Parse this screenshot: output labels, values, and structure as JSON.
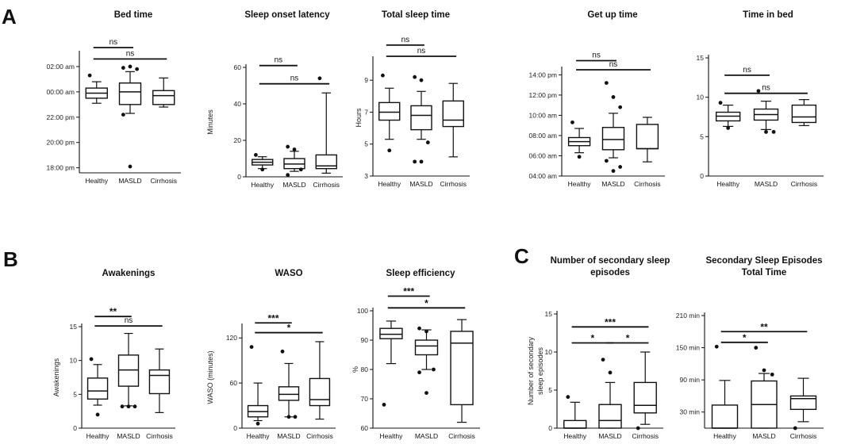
{
  "figure": {
    "panel_labels": [
      "A",
      "B",
      "C"
    ]
  },
  "chart_data": [
    {
      "id": "bed",
      "type": "box",
      "title": "Bed time",
      "ylabel": "",
      "ylim": [
        17.6,
        27.0
      ],
      "ticks": [
        {
          "v": 18,
          "label": "18:00 pm"
        },
        {
          "v": 20,
          "label": "20:00 pm"
        },
        {
          "v": 22,
          "label": "22:00 pm"
        },
        {
          "v": 24,
          "label": "00:00 am"
        },
        {
          "v": 26,
          "label": "02:00 am"
        }
      ],
      "categories": [
        "Healthy",
        "MASLD",
        "Cirrhosis"
      ],
      "boxes": [
        {
          "wlo": 23.1,
          "q1": 23.5,
          "med": 23.9,
          "q3": 24.3,
          "whi": 24.8,
          "out": [
            25.3
          ]
        },
        {
          "wlo": 22.3,
          "q1": 23.0,
          "med": 24.0,
          "q3": 24.7,
          "whi": 25.6,
          "out": [
            25.9,
            26.0,
            25.8,
            22.2,
            18.1
          ]
        },
        {
          "wlo": 22.8,
          "q1": 23.0,
          "med": 23.7,
          "q3": 24.1,
          "whi": 25.1,
          "out": []
        }
      ],
      "sig": [
        {
          "from": 0,
          "to": 1,
          "label": "ns",
          "y": 27.5
        },
        {
          "from": 0,
          "to": 2,
          "label": "ns",
          "y": 26.6
        }
      ]
    },
    {
      "id": "sol",
      "type": "box",
      "title": "Sleep onset latency",
      "ylabel": "Minutes",
      "ylim": [
        0,
        60
      ],
      "ticks": [
        {
          "v": 0,
          "label": "0"
        },
        {
          "v": 20,
          "label": "20"
        },
        {
          "v": 40,
          "label": "40"
        },
        {
          "v": 60,
          "label": "60"
        }
      ],
      "categories": [
        "Healthy",
        "MASLD",
        "Cirrhosis"
      ],
      "boxes": [
        {
          "wlo": 4.5,
          "q1": 6.5,
          "med": 8,
          "q3": 9.5,
          "whi": 11,
          "out": [
            12,
            4
          ]
        },
        {
          "wlo": 3,
          "q1": 4.5,
          "med": 7,
          "q3": 10,
          "whi": 14,
          "out": [
            16.5,
            15,
            4,
            1
          ]
        },
        {
          "wlo": 2,
          "q1": 4.5,
          "med": 6,
          "q3": 12,
          "whi": 46,
          "out": [
            54
          ]
        }
      ],
      "sig": [
        {
          "from": 0,
          "to": 1,
          "label": "ns",
          "y": 61
        },
        {
          "from": 0,
          "to": 2,
          "label": "ns",
          "y": 51
        }
      ]
    },
    {
      "id": "tst",
      "type": "box",
      "title": "Total sleep time",
      "ylabel": "Hours",
      "ylim": [
        3,
        10.3
      ],
      "ticks": [
        {
          "v": 3,
          "label": "3"
        },
        {
          "v": 5,
          "label": "5"
        },
        {
          "v": 7,
          "label": "7"
        },
        {
          "v": 9,
          "label": "9"
        }
      ],
      "categories": [
        "Healthy",
        "MASLD",
        "Cirrhosis"
      ],
      "boxes": [
        {
          "wlo": 5.3,
          "q1": 6.5,
          "med": 7,
          "q3": 7.6,
          "whi": 8.5,
          "out": [
            9.3,
            4.6
          ]
        },
        {
          "wlo": 5.3,
          "q1": 5.9,
          "med": 6.8,
          "q3": 7.4,
          "whi": 8.3,
          "out": [
            9.2,
            9.0,
            5.1,
            3.9,
            3.9
          ]
        },
        {
          "wlo": 4.2,
          "q1": 6.1,
          "med": 6.5,
          "q3": 7.7,
          "whi": 8.8,
          "out": []
        }
      ],
      "sig": [
        {
          "from": 0,
          "to": 1,
          "label": "ns",
          "y": 11.2
        },
        {
          "from": 0,
          "to": 2,
          "label": "ns",
          "y": 10.5
        }
      ]
    },
    {
      "id": "get",
      "type": "box",
      "title": "Get up time",
      "ylabel": "",
      "ylim": [
        4,
        14.5
      ],
      "ticks": [
        {
          "v": 4,
          "label": "04:00 am"
        },
        {
          "v": 6,
          "label": "06:00 am"
        },
        {
          "v": 8,
          "label": "08:00 am"
        },
        {
          "v": 10,
          "label": "10:00 am"
        },
        {
          "v": 12,
          "label": "12:00 pm"
        },
        {
          "v": 14,
          "label": "14:00 pm"
        }
      ],
      "categories": [
        "Healthy",
        "MASLD",
        "Cirrhosis"
      ],
      "boxes": [
        {
          "wlo": 6.3,
          "q1": 7,
          "med": 7.4,
          "q3": 7.8,
          "whi": 8.7,
          "out": [
            9.3,
            5.9
          ]
        },
        {
          "wlo": 5.8,
          "q1": 6.6,
          "med": 7.6,
          "q3": 8.8,
          "whi": 10.2,
          "out": [
            13.2,
            11.8,
            10.8,
            5.5,
            4.5,
            4.9
          ]
        },
        {
          "wlo": 5.4,
          "q1": 6.7,
          "med": 6.7,
          "q3": 9.1,
          "whi": 9.8,
          "out": []
        }
      ],
      "sig": [
        {
          "from": 0,
          "to": 1,
          "label": "ns",
          "y": 15.4
        },
        {
          "from": 0,
          "to": 2,
          "label": "ns",
          "y": 14.5
        }
      ]
    },
    {
      "id": "tib",
      "type": "box",
      "title": "Time in bed",
      "ylabel": "",
      "ylim": [
        0,
        15
      ],
      "ticks": [
        {
          "v": 0,
          "label": "0"
        },
        {
          "v": 5,
          "label": "5"
        },
        {
          "v": 10,
          "label": "10"
        },
        {
          "v": 15,
          "label": "15"
        }
      ],
      "categories": [
        "Healthy",
        "MASLD",
        "Cirrhosis"
      ],
      "boxes": [
        {
          "wlo": 6.3,
          "q1": 7,
          "med": 7.6,
          "q3": 8.1,
          "whi": 9,
          "out": [
            9.3,
            6.1
          ]
        },
        {
          "wlo": 5.9,
          "q1": 7.1,
          "med": 7.8,
          "q3": 8.5,
          "whi": 9.5,
          "out": [
            10.8,
            5.6,
            5.6
          ]
        },
        {
          "wlo": 6.4,
          "q1": 6.8,
          "med": 7.5,
          "q3": 9,
          "whi": 9.7,
          "out": []
        }
      ],
      "sig": [
        {
          "from": 0,
          "to": 1,
          "label": "ns",
          "y": 12.8
        },
        {
          "from": 0,
          "to": 2,
          "label": "ns",
          "y": 10.5
        }
      ]
    },
    {
      "id": "awk",
      "type": "box",
      "title": "Awakenings",
      "ylabel": "Awakenings",
      "ylim": [
        0,
        15
      ],
      "ticks": [
        {
          "v": 0,
          "label": "0"
        },
        {
          "v": 5,
          "label": "5"
        },
        {
          "v": 10,
          "label": "10"
        },
        {
          "v": 15,
          "label": "15"
        }
      ],
      "categories": [
        "Healthy",
        "MASLD",
        "Cirrhosis"
      ],
      "boxes": [
        {
          "wlo": 3.4,
          "q1": 4.3,
          "med": 5.5,
          "q3": 7.4,
          "whi": 9.4,
          "out": [
            10.2,
            2
          ]
        },
        {
          "wlo": 3.3,
          "q1": 6.2,
          "med": 8.6,
          "q3": 10.8,
          "whi": 14,
          "out": [
            3.2,
            3.2,
            3.2
          ]
        },
        {
          "wlo": 2.3,
          "q1": 5.1,
          "med": 7.8,
          "q3": 8.6,
          "whi": 11.7,
          "out": []
        }
      ],
      "sig": [
        {
          "from": 0,
          "to": 1,
          "label": "**",
          "y": 16.5
        },
        {
          "from": 0,
          "to": 2,
          "label": "ns",
          "y": 15.1
        }
      ]
    },
    {
      "id": "waso",
      "type": "box",
      "title": "WASO",
      "ylabel": "WASO (minutes)",
      "ylim": [
        0,
        135
      ],
      "ticks": [
        {
          "v": 0,
          "label": "0"
        },
        {
          "v": 60,
          "label": "60"
        },
        {
          "v": 120,
          "label": "120"
        }
      ],
      "categories": [
        "Healthy",
        "MASLD",
        "Cirrhosis"
      ],
      "boxes": [
        {
          "wlo": 10,
          "q1": 15,
          "med": 22,
          "q3": 30,
          "whi": 60,
          "out": [
            108,
            6
          ]
        },
        {
          "wlo": 15,
          "q1": 37,
          "med": 45,
          "q3": 55,
          "whi": 86,
          "out": [
            102,
            15,
            15
          ]
        },
        {
          "wlo": 12,
          "q1": 30,
          "med": 38,
          "q3": 66,
          "whi": 115,
          "out": []
        }
      ],
      "sig": [
        {
          "from": 0,
          "to": 1,
          "label": "***",
          "y": 140
        },
        {
          "from": 0,
          "to": 2,
          "label": "*",
          "y": 127
        }
      ]
    },
    {
      "id": "eff",
      "type": "box",
      "title": "Sleep efficiency",
      "ylabel": "%",
      "ylim": [
        60,
        100
      ],
      "ticks": [
        {
          "v": 60,
          "label": "60"
        },
        {
          "v": 70,
          "label": "70"
        },
        {
          "v": 80,
          "label": "80"
        },
        {
          "v": 90,
          "label": "90"
        },
        {
          "v": 100,
          "label": "100"
        }
      ],
      "categories": [
        "Healthy",
        "MASLD",
        "Cirrhosis"
      ],
      "boxes": [
        {
          "wlo": 82,
          "q1": 90.5,
          "med": 92,
          "q3": 94,
          "whi": 96.5,
          "out": [
            68
          ]
        },
        {
          "wlo": 80,
          "q1": 85,
          "med": 88,
          "q3": 90,
          "whi": 93.5,
          "out": [
            94,
            93,
            80,
            79,
            72
          ]
        },
        {
          "wlo": 62,
          "q1": 68,
          "med": 89,
          "q3": 93,
          "whi": 97,
          "out": []
        }
      ],
      "sig": [
        {
          "from": 0,
          "to": 1,
          "label": "***",
          "y": 105
        },
        {
          "from": 0,
          "to": 2,
          "label": "*",
          "y": 101
        }
      ]
    },
    {
      "id": "sec",
      "type": "box",
      "title": "Number of secondary sleep episodes",
      "title_lines": [
        "Number of secondary sleep",
        "episodes"
      ],
      "ylabel": "Number of secondary sleep episodes",
      "ylabel_lines": [
        "Number of secondary",
        "sleep episodes"
      ],
      "ylim": [
        0,
        15
      ],
      "ticks": [
        {
          "v": 0,
          "label": "0"
        },
        {
          "v": 5,
          "label": "5"
        },
        {
          "v": 10,
          "label": "10"
        },
        {
          "v": 15,
          "label": "15"
        }
      ],
      "categories": [
        "Healthy",
        "MASLD",
        "Cirrhosis"
      ],
      "boxes": [
        {
          "wlo": 0,
          "q1": 0,
          "med": 0,
          "q3": 1,
          "whi": 3.4,
          "out": [
            4.1
          ]
        },
        {
          "wlo": 0,
          "q1": 0,
          "med": 1,
          "q3": 3.1,
          "whi": 6,
          "out": [
            9,
            7.3
          ]
        },
        {
          "wlo": 0.5,
          "q1": 2,
          "med": 3,
          "q3": 6,
          "whi": 10,
          "out": [
            0
          ]
        }
      ],
      "sig": [
        {
          "from": 0,
          "to": 1,
          "label": "*",
          "y": 11.2
        },
        {
          "from": 0,
          "to": 2,
          "label": "***",
          "y": 13.3
        },
        {
          "from": 1,
          "to": 2,
          "label": "*",
          "y": 11.2
        }
      ]
    },
    {
      "id": "sectime",
      "type": "box",
      "title": "Secondary Sleep Episodes Total Time",
      "title_lines": [
        "Secondary Sleep Episodes",
        "Total Time"
      ],
      "ylabel": "",
      "ylim": [
        0,
        210
      ],
      "ticks": [
        {
          "v": 30,
          "label": "30 min"
        },
        {
          "v": 90,
          "label": "90 min"
        },
        {
          "v": 150,
          "label": "150 min"
        },
        {
          "v": 210,
          "label": "210 min"
        }
      ],
      "categories": [
        "Healthy",
        "MASLD",
        "Cirrhosis"
      ],
      "boxes": [
        {
          "wlo": 0,
          "q1": 0,
          "med": 0,
          "q3": 43,
          "whi": 89,
          "out": [
            152
          ]
        },
        {
          "wlo": 0,
          "q1": 0,
          "med": 44,
          "q3": 88,
          "whi": 102,
          "out": [
            150,
            108,
            100
          ]
        },
        {
          "wlo": 12,
          "q1": 35,
          "med": 55,
          "q3": 60,
          "whi": 93,
          "out": [
            0
          ]
        }
      ],
      "sig": [
        {
          "from": 0,
          "to": 1,
          "label": "*",
          "y": 160
        },
        {
          "from": 0,
          "to": 2,
          "label": "**",
          "y": 180
        }
      ]
    }
  ]
}
